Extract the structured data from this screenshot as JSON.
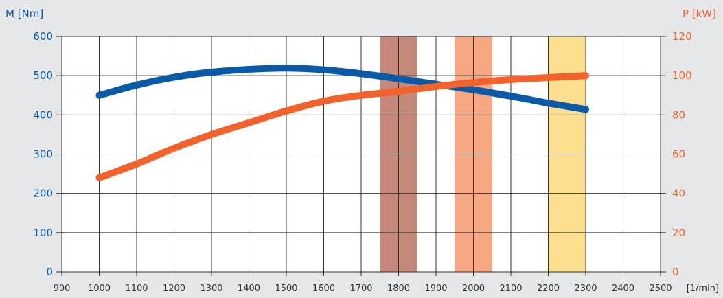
{
  "chart_data": {
    "type": "line",
    "x_unit": "[1/min]",
    "xlim": [
      900,
      2500
    ],
    "x_ticks": [
      900,
      1000,
      1100,
      1200,
      1300,
      1400,
      1500,
      1600,
      1700,
      1800,
      1900,
      2000,
      2100,
      2200,
      2300,
      2400,
      2500
    ],
    "y_left": {
      "label": "M [Nm]",
      "lim": [
        0,
        600
      ],
      "ticks": [
        0,
        100,
        200,
        300,
        400,
        500,
        600
      ],
      "color": "#0a5aa8"
    },
    "y_right": {
      "label": "P [kW]",
      "lim": [
        0,
        120
      ],
      "ticks": [
        0,
        20,
        40,
        60,
        80,
        100,
        120
      ],
      "color": "#f2622a"
    },
    "grid": true,
    "bands": [
      {
        "from": 1750,
        "to": 1850,
        "color": "#c4897a"
      },
      {
        "from": 1950,
        "to": 2050,
        "color": "#f5a882"
      },
      {
        "from": 2200,
        "to": 2300,
        "color": "#fde08f"
      }
    ],
    "series": [
      {
        "axis": "left",
        "color": "#0a5aa8",
        "x": [
          1000,
          1100,
          1200,
          1300,
          1400,
          1500,
          1600,
          1700,
          1800,
          1900,
          2000,
          2100,
          2200,
          2300
        ],
        "values": [
          450,
          476,
          496,
          509,
          516,
          519,
          515,
          505,
          492,
          478,
          464,
          448,
          430,
          414
        ]
      },
      {
        "axis": "right",
        "color": "#f2622a",
        "x": [
          1000,
          1100,
          1200,
          1300,
          1400,
          1500,
          1600,
          1700,
          1800,
          1900,
          2000,
          2100,
          2200,
          2300
        ],
        "values": [
          48,
          55,
          63,
          70,
          76,
          82,
          87,
          90,
          92,
          94.5,
          96.5,
          98,
          99,
          100
        ]
      }
    ]
  }
}
